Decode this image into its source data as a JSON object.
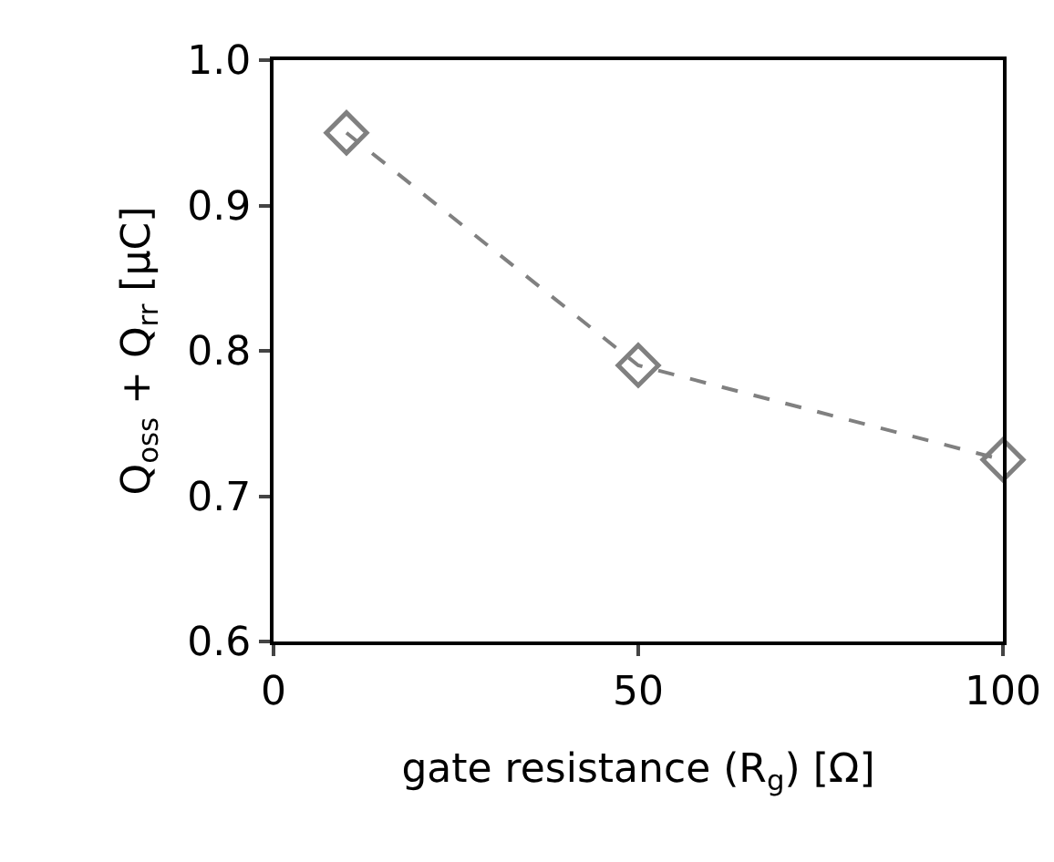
{
  "chart_data": {
    "type": "line",
    "xlabel": "gate resistance (R$_{g}$) [Ω]",
    "ylabel": "Q$_{oss}$ + Q$_{rr}$ [μC]",
    "x": [
      10,
      50,
      100
    ],
    "series": [
      {
        "color": "#808080",
        "values": [
          0.95,
          0.79,
          0.725
        ]
      }
    ],
    "xlim": [
      0,
      100
    ],
    "xticks": [
      0,
      50,
      100
    ],
    "ylim": [
      0.6,
      1.0
    ],
    "yticks": [
      {
        "value": 0.6,
        "label": "0.6"
      },
      {
        "value": 0.7,
        "label": "0.7"
      },
      {
        "value": 0.8,
        "label": "0.8"
      },
      {
        "value": 0.9,
        "label": "0.9"
      },
      {
        "value": 1.0,
        "label": "1.0"
      }
    ],
    "grid": false,
    "marker": "diamond",
    "line_style": "dashed"
  }
}
